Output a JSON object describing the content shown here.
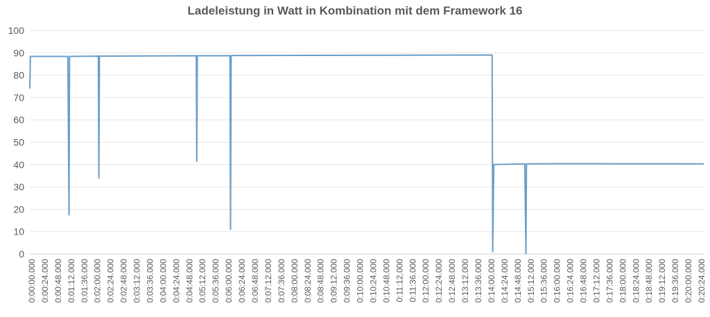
{
  "chart_data": {
    "type": "line",
    "title": "Ladeleistung in Watt in Kombination mit dem Framework 16",
    "xlabel": "",
    "ylabel": "",
    "ylim": [
      0,
      100
    ],
    "yticks": [
      "0",
      "10",
      "20",
      "30",
      "40",
      "50",
      "60",
      "70",
      "80",
      "90",
      "100"
    ],
    "grid": true,
    "legend": "none",
    "line_color": "#6a9ec8",
    "x_range_seconds": [
      0,
      1239
    ],
    "xtick_labels": [
      "0:00:00.000",
      "0:00:24.000",
      "0:00:48.000",
      "0:01:12.000",
      "0:01:36.000",
      "0:02:00.000",
      "0:02:24.000",
      "0:02:48.000",
      "0:03:12.000",
      "0:03:36.000",
      "0:04:00.000",
      "0:04:24.000",
      "0:04:48.000",
      "0:05:12.000",
      "0:05:36.000",
      "0:06:00.000",
      "0:06:24.000",
      "0:06:48.000",
      "0:07:12.000",
      "0:07:36.000",
      "0:08:00.000",
      "0:08:24.000",
      "0:08:48.000",
      "0:09:12.000",
      "0:09:36.000",
      "0:10:00.000",
      "0:10:24.000",
      "0:10:48.000",
      "0:11:12.000",
      "0:11:36.000",
      "0:12:00.000",
      "0:12:24.000",
      "0:12:48.000",
      "0:13:12.000",
      "0:13:36.000",
      "0:14:00.000",
      "0:14:24.000",
      "0:14:48.000",
      "0:15:12.000",
      "0:15:36.000",
      "0:16:00.000",
      "0:16:24.000",
      "0:16:48.000",
      "0:17:12.000",
      "0:17:36.000",
      "0:18:00.000",
      "0:18:24.000",
      "0:18:48.000",
      "0:19:12.000",
      "0:19:36.000",
      "0:20:00.000",
      "0:20:24.000"
    ],
    "series": [
      {
        "points": [
          [
            "0:00:00",
            74
          ],
          [
            "0:00:01",
            88.4
          ],
          [
            "0:01:10",
            88.4
          ],
          [
            "0:01:12",
            17.5
          ],
          [
            "0:01:13",
            88.4
          ],
          [
            "0:02:06",
            88.5
          ],
          [
            "0:02:07",
            34
          ],
          [
            "0:02:08",
            88.5
          ],
          [
            "0:05:06",
            88.7
          ],
          [
            "0:05:07",
            41.5
          ],
          [
            "0:05:08",
            88.7
          ],
          [
            "0:06:08",
            88.7
          ],
          [
            "0:06:09",
            11
          ],
          [
            "0:06:10",
            88.8
          ],
          [
            "0:10:00",
            88.9
          ],
          [
            "0:14:10",
            89
          ],
          [
            "0:14:11",
            1
          ],
          [
            "0:14:13",
            40
          ],
          [
            "0:15:10",
            40.3
          ],
          [
            "0:15:12",
            0.3
          ],
          [
            "0:15:13",
            40.3
          ],
          [
            "0:16:24",
            40.4
          ],
          [
            "0:20:39",
            40.3
          ]
        ]
      }
    ]
  }
}
